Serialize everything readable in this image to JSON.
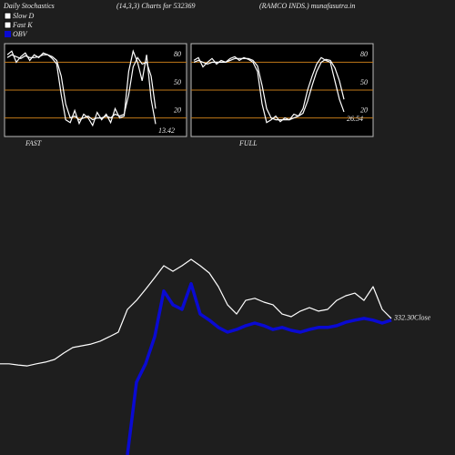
{
  "chart_data": [
    {
      "type": "stochastic",
      "title": "Daily Stochastics",
      "subtitle": "(14,3,3) Charts for 532369",
      "source": "(RAMCO INDS.) munafasutra.in",
      "label": "FAST",
      "ylim": [
        0,
        100
      ],
      "yticks": [
        20,
        50,
        80
      ],
      "grid_color": "#c07818",
      "series": [
        {
          "name": "Fast K",
          "color": "#ffffff",
          "values": [
            88,
            92,
            80,
            86,
            90,
            82,
            88,
            85,
            90,
            88,
            84,
            78,
            45,
            18,
            15,
            28,
            14,
            24,
            20,
            12,
            26,
            18,
            24,
            15,
            30,
            20,
            22,
            70,
            92,
            80,
            60,
            88,
            40,
            13.42
          ]
        },
        {
          "name": "Slow D",
          "color": "#ffffff",
          "values": [
            85,
            88,
            86,
            84,
            87,
            85,
            85,
            86,
            88,
            88,
            86,
            82,
            65,
            35,
            20,
            22,
            18,
            20,
            22,
            18,
            20,
            20,
            22,
            20,
            24,
            22,
            24,
            45,
            75,
            85,
            78,
            80,
            65,
            30
          ]
        }
      ]
    },
    {
      "type": "stochastic",
      "label": "FULL",
      "ylim": [
        0,
        100
      ],
      "yticks": [
        20,
        50,
        80
      ],
      "grid_color": "#c07818",
      "series": [
        {
          "color": "#ffffff",
          "values": [
            82,
            85,
            75,
            80,
            84,
            78,
            82,
            80,
            84,
            86,
            82,
            85,
            83,
            80,
            70,
            35,
            15,
            18,
            22,
            16,
            20,
            18,
            24,
            22,
            30,
            50,
            65,
            78,
            85,
            82,
            80,
            60,
            40,
            26.54
          ]
        },
        {
          "color": "#ffffff",
          "values": [
            80,
            82,
            80,
            78,
            80,
            80,
            80,
            80,
            82,
            84,
            84,
            84,
            84,
            82,
            76,
            55,
            30,
            20,
            18,
            18,
            18,
            18,
            20,
            22,
            25,
            38,
            55,
            70,
            80,
            83,
            82,
            74,
            60,
            40
          ]
        }
      ]
    },
    {
      "type": "line",
      "close_label": "332.30Close",
      "ylim": [
        0,
        100
      ],
      "series": [
        {
          "color": "#ffffff",
          "values": [
            31.3,
            31.3,
            30.9,
            30.6,
            31.3,
            31.9,
            32.8,
            35,
            36.9,
            37.5,
            38.1,
            39.1,
            40.6,
            42.2,
            50,
            53.1,
            56.9,
            60.9,
            65,
            63.1,
            65,
            67.2,
            65,
            62.5,
            57.8,
            51.6,
            48.4,
            53.1,
            53.8,
            52.5,
            51.6,
            48.4,
            47.5,
            49.4,
            50.6,
            49.4,
            50,
            53.1,
            54.7,
            55.6,
            53.1,
            57.8,
            50,
            46.9
          ]
        },
        {
          "name": "OBV",
          "color": "#0a0ad2",
          "values": [
            null,
            null,
            null,
            null,
            null,
            null,
            null,
            null,
            null,
            null,
            null,
            null,
            null,
            null,
            0,
            25,
            31.3,
            40.6,
            56.3,
            51.6,
            50,
            58.8,
            48.4,
            46.3,
            43.8,
            42.2,
            43.1,
            44.4,
            45.3,
            44.4,
            43.1,
            43.8,
            42.8,
            42.2,
            43.1,
            43.8,
            43.8,
            44.4,
            45.6,
            46.3,
            46.9,
            46.3,
            45.3,
            46.3
          ]
        }
      ]
    }
  ]
}
